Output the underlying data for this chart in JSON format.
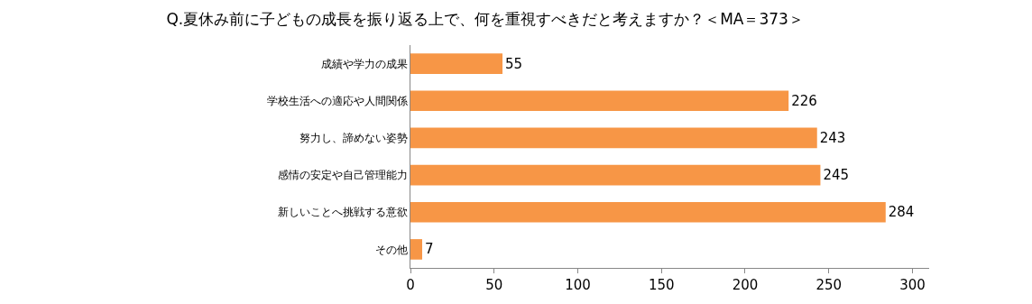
{
  "chart_data": {
    "type": "bar",
    "orientation": "horizontal",
    "title": "Q.夏休み前に子どもの成長を振り返る上で、何を重視すべきだと考えますか？＜MA＝373＞",
    "categories": [
      "成績や学力の成果",
      "学校生活への適応や人間関係",
      "努力し、諦めない姿勢",
      "感情の安定や自己管理能力",
      "新しいことへ挑戦する意欲",
      "その他"
    ],
    "values": [
      55,
      226,
      243,
      245,
      284,
      7
    ],
    "color": "#f79646",
    "data_labels": true,
    "xlim": [
      0,
      310
    ],
    "xticks": [
      0,
      50,
      100,
      150,
      200,
      250,
      300
    ]
  }
}
